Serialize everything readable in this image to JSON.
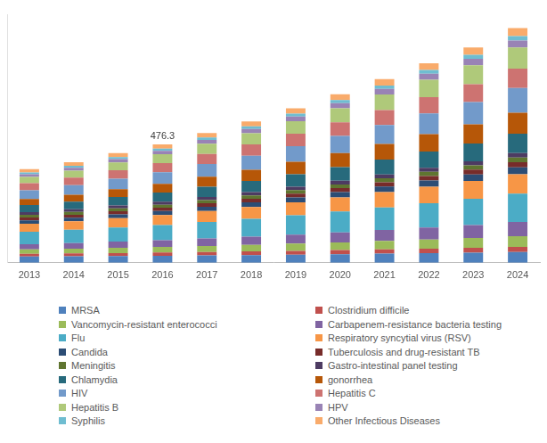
{
  "chart_data": {
    "type": "bar",
    "stacked": true,
    "grid": false,
    "legend": "bottom",
    "tick_labels": "x",
    "categories": [
      "2013",
      "2014",
      "2015",
      "2016",
      "2017",
      "2018",
      "2019",
      "2020",
      "2021",
      "2022",
      "2023",
      "2024"
    ],
    "ylim": [
      0,
      1000
    ],
    "annotations": [
      {
        "x": "2016",
        "y": 476.3,
        "text": "476.3"
      }
    ],
    "series": [
      {
        "name": "MRSA",
        "color": "#4f81bd",
        "values": [
          25,
          25.9,
          27.0,
          28.2,
          29.6,
          31.1,
          32.8,
          34.6,
          36.5,
          38.5,
          40.6,
          43
        ]
      },
      {
        "name": "Clostridium difficile",
        "color": "#c0504d",
        "values": [
          11,
          11.5,
          12.1,
          12.8,
          13.6,
          14.4,
          15.3,
          16.3,
          17.4,
          18.5,
          19.6,
          21
        ]
      },
      {
        "name": "Vancomycin-resistant enterococci",
        "color": "#9bbb59",
        "values": [
          18,
          19.2,
          20.8,
          22.4,
          24.4,
          26.5,
          28.8,
          31.3,
          34.0,
          36.8,
          39.6,
          43
        ]
      },
      {
        "name": "Carbapenem-resistance bacteria testing",
        "color": "#8064a2",
        "values": [
          21,
          22.8,
          25.1,
          27.3,
          30.2,
          33.2,
          36.6,
          40.2,
          44.0,
          48.0,
          52.1,
          57
        ]
      },
      {
        "name": "Flu",
        "color": "#4bacc6",
        "values": [
          50,
          53.1,
          57.2,
          61.2,
          66.4,
          71.6,
          77.6,
          84.0,
          90.8,
          98.1,
          105.3,
          114
        ]
      },
      {
        "name": "Respiratory syncytial virus (RSV)",
        "color": "#f79646",
        "values": [
          32,
          34.3,
          37.2,
          40.1,
          43.8,
          47.5,
          51.9,
          56.5,
          61.3,
          66.5,
          71.7,
          78
        ]
      },
      {
        "name": "Candida",
        "color": "#2c4d75",
        "values": [
          14,
          14.7,
          15.6,
          16.5,
          17.6,
          18.7,
          20.0,
          21.4,
          22.9,
          24.5,
          26.1,
          28
        ]
      },
      {
        "name": "Tuberculosis and drug-resistant TB",
        "color": "#772c2a",
        "values": [
          11,
          11.5,
          12.1,
          12.8,
          13.6,
          14.4,
          15.3,
          16.3,
          17.4,
          18.5,
          19.6,
          21
        ]
      },
      {
        "name": "Meningitis",
        "color": "#5f7530",
        "values": [
          11,
          11.3,
          11.8,
          12.2,
          12.8,
          13.4,
          14.0,
          14.7,
          15.5,
          16.3,
          17.0,
          18
        ]
      },
      {
        "name": "Gastro-intestinal panel testing",
        "color": "#4d3b62",
        "values": [
          11,
          11.3,
          11.8,
          12.2,
          12.8,
          13.4,
          14.0,
          14.7,
          15.5,
          16.3,
          17.0,
          18
        ]
      },
      {
        "name": "Chlamydia",
        "color": "#276a7c",
        "values": [
          28,
          30.5,
          33.7,
          36.8,
          40.8,
          44.9,
          49.6,
          54.6,
          59.9,
          65.6,
          71.2,
          78
        ]
      },
      {
        "name": "gonorrhea",
        "color": "#b65708",
        "values": [
          25,
          27.9,
          31.8,
          35.5,
          40.4,
          45.3,
          50.9,
          56.9,
          63.3,
          70.1,
          76.8,
          85
        ]
      },
      {
        "name": "HIV",
        "color": "#729aca",
        "values": [
          35,
          38.1,
          42.2,
          46.2,
          51.4,
          56.6,
          62.6,
          69.0,
          75.8,
          83.1,
          90.3,
          99
        ]
      },
      {
        "name": "Hepatitis C",
        "color": "#cd7371",
        "values": [
          28,
          30.5,
          33.7,
          36.8,
          40.8,
          44.9,
          49.6,
          54.6,
          59.9,
          65.6,
          71.2,
          78
        ]
      },
      {
        "name": "Hepatitis B",
        "color": "#afc97a",
        "values": [
          25,
          27.9,
          31.8,
          35.5,
          40.4,
          45.3,
          50.9,
          56.9,
          63.3,
          70.1,
          76.8,
          85
        ]
      },
      {
        "name": "HPV",
        "color": "#9983b5",
        "values": [
          11,
          11.8,
          12.9,
          14.0,
          15.4,
          16.7,
          18.3,
          20.0,
          21.8,
          23.8,
          25.7,
          28
        ]
      },
      {
        "name": "Syphilis",
        "color": "#6fbdd1",
        "values": [
          7,
          7.5,
          8.2,
          8.9,
          9.8,
          10.7,
          11.8,
          12.9,
          14.0,
          15.3,
          16.5,
          18
        ]
      },
      {
        "name": "Other Infectious Diseases",
        "color": "#f9ab6b",
        "values": [
          14,
          14.9,
          16.0,
          16.9,
          18.6,
          20.1,
          21.8,
          23.6,
          25.5,
          27.5,
          29.6,
          32
        ]
      }
    ]
  }
}
